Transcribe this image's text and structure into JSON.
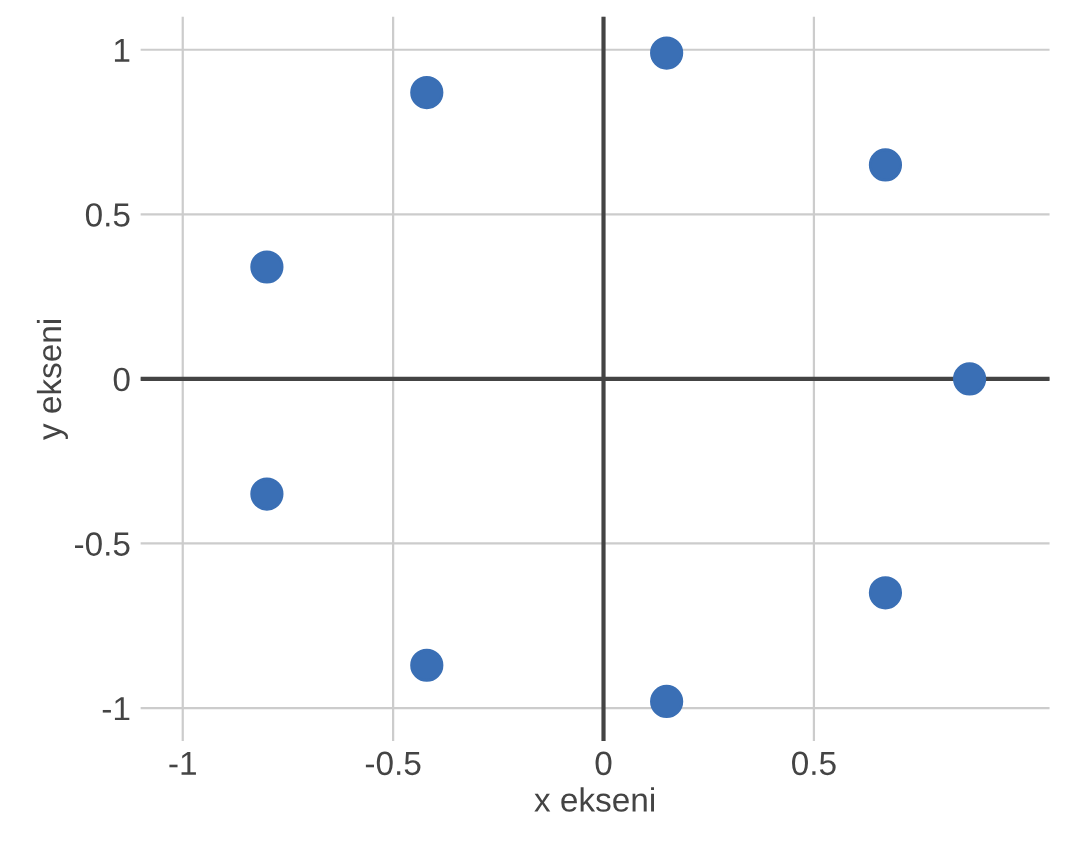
{
  "chart_data": {
    "type": "scatter",
    "xlabel": "x ekseni",
    "ylabel": "y ekseni",
    "x": [
      -0.8,
      -0.42,
      0.15,
      0.67,
      0.87,
      -0.8,
      0.67,
      -0.42,
      0.15
    ],
    "series": [
      {
        "color": "#3a6fb5",
        "values": [
          0.34,
          0.87,
          0.99,
          0.65,
          0,
          -0.35,
          -0.65,
          -0.87,
          -0.98
        ]
      }
    ],
    "xlim": [
      -1.1,
      1.06
    ],
    "ylim": [
      -1.1,
      1.1
    ],
    "xticks": [
      -1,
      -0.5,
      0,
      0.5
    ],
    "yticks": [
      -1,
      -0.5,
      0,
      0.5,
      1
    ],
    "grid": true,
    "marker": "circle"
  }
}
